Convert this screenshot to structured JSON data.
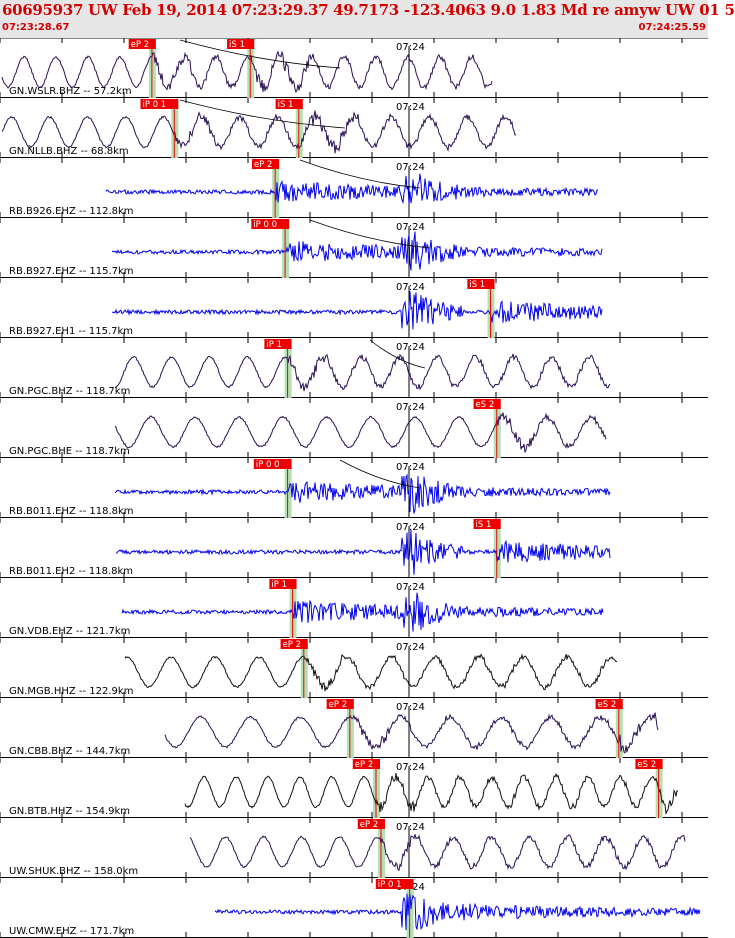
{
  "header": {
    "title": "60695937 UW Feb 19, 2014 07:23:29.37    49.7173 -123.4063  9.0 1.83 Md re amyw UW 01    5",
    "start_time": "07:23:28.67",
    "end_time": "07:24:25.59"
  },
  "colors": {
    "header_text": "#d40000",
    "header_bg": "#e6e6e6",
    "pick_box": "#ee0000",
    "pick_band": "#b3e0b3",
    "trace_dark": "#2a1055",
    "trace_blue": "#0000ee",
    "trace_black": "#111111",
    "theoretical_curve": "#000000"
  },
  "chart_data": {
    "type": "line",
    "title": "60695937 UW Feb 19, 2014 07:23:29.37    49.7173 -123.4063  9.0 1.83 Md re amyw UW 01    5",
    "x_range": [
      "07:23:28.67",
      "07:24:25.59"
    ],
    "minute_tick_label": "07:24",
    "grid": true,
    "series": [
      {
        "name": "GN.WSLR.BHZ -- 57.2km",
        "color": "#2a1055",
        "kind": "long",
        "picks": [
          {
            "label": "eP 2",
            "t": 12.2
          },
          {
            "label": "iS 1",
            "t": 20.1
          }
        ]
      },
      {
        "name": "GN.NLLB.BHZ -- 68.8km",
        "color": "#2a1055",
        "kind": "long",
        "picks": [
          {
            "label": "iP 0 1",
            "t": 14.0
          },
          {
            "label": "iS 1",
            "t": 24.0
          }
        ]
      },
      {
        "name": "RB.B926.EHZ -- 112.8km",
        "color": "#0000ee",
        "kind": "short",
        "picks": [
          {
            "label": "eP 2",
            "t": 22.1
          }
        ]
      },
      {
        "name": "RB.B927.EHZ -- 115.7km",
        "color": "#0000ee",
        "kind": "short",
        "picks": [
          {
            "label": "iP 0 0",
            "t": 22.9
          }
        ]
      },
      {
        "name": "RB.B927.EH1 -- 115.7km",
        "color": "#0000ee",
        "kind": "short",
        "picks": [
          {
            "label": "iS 1",
            "t": 39.4
          }
        ]
      },
      {
        "name": "GN.PGC.BHZ -- 118.7km",
        "color": "#2a1055",
        "kind": "long",
        "picks": [
          {
            "label": "iP 1",
            "t": 23.1
          }
        ]
      },
      {
        "name": "GN.PGC.BHE -- 118.7km",
        "color": "#2a1055",
        "kind": "long",
        "picks": [
          {
            "label": "eS 2",
            "t": 39.9
          }
        ]
      },
      {
        "name": "RB.B011.EHZ -- 118.8km",
        "color": "#0000ee",
        "kind": "short",
        "picks": [
          {
            "label": "iP 0 0",
            "t": 23.1
          }
        ]
      },
      {
        "name": "RB.B011.EH2 -- 118.8km",
        "color": "#0000ee",
        "kind": "short",
        "picks": [
          {
            "label": "iS 1",
            "t": 39.9
          }
        ]
      },
      {
        "name": "GN.VDB.EHZ -- 121.7km",
        "color": "#0000ee",
        "kind": "short",
        "picks": [
          {
            "label": "iP 1",
            "t": 23.5
          }
        ]
      },
      {
        "name": "GN.MGB.HHZ -- 122.9km",
        "color": "#111111",
        "kind": "long",
        "picks": [
          {
            "label": "eP 2",
            "t": 24.4
          }
        ]
      },
      {
        "name": "GN.CBB.BHZ -- 144.7km",
        "color": "#2a1055",
        "kind": "long",
        "picks": [
          {
            "label": "eP 2",
            "t": 28.1
          },
          {
            "label": "eS 2",
            "t": 49.7
          }
        ]
      },
      {
        "name": "GN.BTB.HHZ -- 154.9km",
        "color": "#111111",
        "kind": "long",
        "picks": [
          {
            "label": "eP 2",
            "t": 30.2
          },
          {
            "label": "eS 2",
            "t": 52.9
          }
        ]
      },
      {
        "name": "UW.SHUK.BHZ -- 158.0km",
        "color": "#2a1055",
        "kind": "long",
        "picks": [
          {
            "label": "eP 2",
            "t": 30.6
          }
        ]
      },
      {
        "name": "UW.CMW.EHZ -- 171.7km",
        "color": "#0000ee",
        "kind": "short",
        "picks": [
          {
            "label": "iP 0 1",
            "t": 32.9
          }
        ]
      }
    ]
  }
}
